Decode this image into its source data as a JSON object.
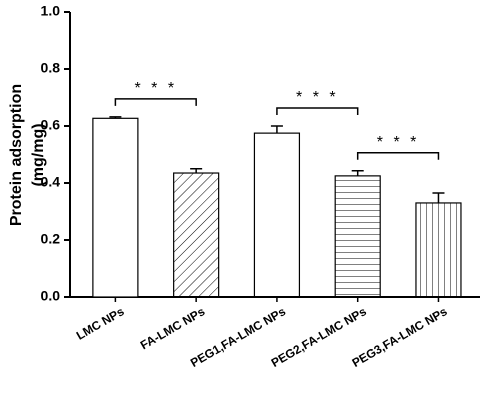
{
  "chart_data": {
    "type": "bar",
    "y_label": [
      "Protein adsorption",
      "(mg/mg)"
    ],
    "categories": [
      "LMC NPs",
      "FA-LMC NPs",
      "PEG1,FA-LMC NPs",
      "PEG2,FA-LMC NPs",
      "PEG3,FA-LMC NPs"
    ],
    "values": [
      0.627,
      0.435,
      0.575,
      0.425,
      0.33
    ],
    "errors": [
      0.005,
      0.015,
      0.025,
      0.018,
      0.035
    ],
    "hatches": [
      "none",
      "/",
      "\\",
      "-",
      "|"
    ],
    "color": "#000000",
    "ylim": [
      0,
      1.0
    ],
    "yticks": [
      {
        "value": 0,
        "label": "0.0"
      },
      {
        "value": 0.2,
        "label": "0.2"
      },
      {
        "value": 0.4,
        "label": "0.4"
      },
      {
        "value": 0.6,
        "label": "0.6"
      },
      {
        "value": 0.8,
        "label": "0.8"
      },
      {
        "value": 1.0,
        "label": "1.0"
      }
    ],
    "annotations": [
      {
        "text": "* * *",
        "from": 0,
        "to": 1
      },
      {
        "text": "* * *",
        "from": 2,
        "to": 3
      },
      {
        "text": "* * *",
        "from": 3,
        "to": 4
      }
    ]
  }
}
